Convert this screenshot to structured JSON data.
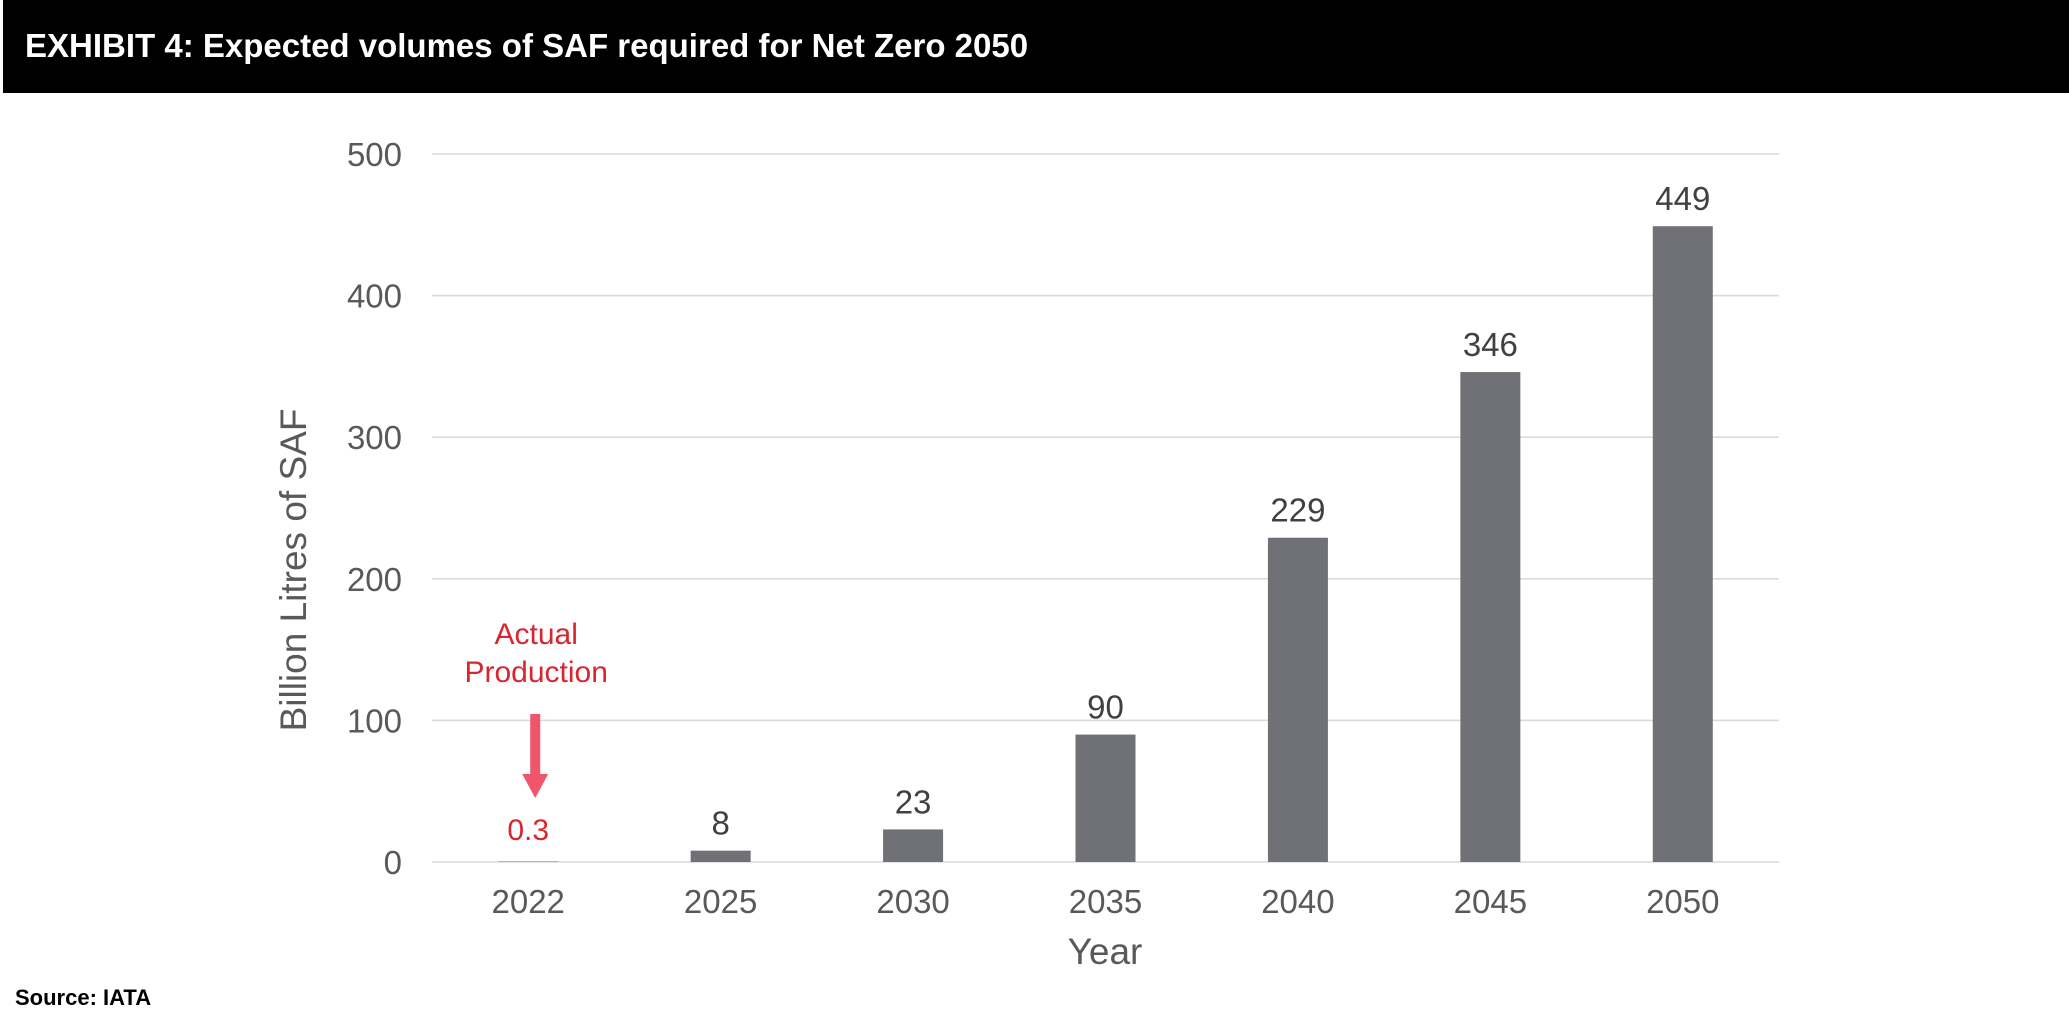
{
  "header": {
    "title": "EXHIBIT 4: Expected volumes of SAF required for Net Zero 2050"
  },
  "source": "Source: IATA",
  "colors": {
    "bar": "#707077",
    "gridline": "#d9d9d9",
    "annotation_text": "#d9262e",
    "annotation_arrow": "#f0566b",
    "header_background": "#000000"
  },
  "chart_data": {
    "type": "bar",
    "categories": [
      "2022",
      "2025",
      "2030",
      "2035",
      "2040",
      "2045",
      "2050"
    ],
    "values": [
      0.3,
      8,
      23,
      90,
      229,
      346,
      449
    ],
    "data_labels": [
      "0.3",
      "8",
      "23",
      "90",
      "229",
      "346",
      "449"
    ],
    "title": "",
    "xlabel": "Year",
    "ylabel": "Billion Litres of SAF",
    "ylim": [
      0,
      500
    ],
    "yticks": [
      0,
      100,
      200,
      300,
      400,
      500
    ],
    "grid": true,
    "legend": "none",
    "annotation": {
      "category": "2022",
      "lines": [
        "Actual",
        "Production"
      ]
    }
  }
}
